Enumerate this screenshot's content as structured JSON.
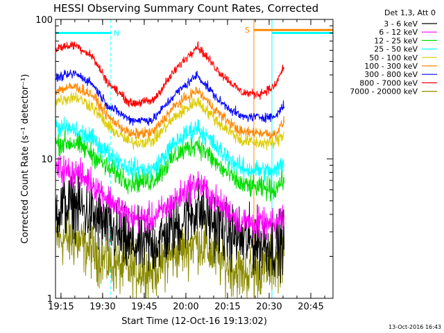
{
  "chart_data": {
    "type": "line",
    "title": "HESSI Observing Summary Count Rates, Corrected",
    "xlabel": "Start Time (12-Oct-16 19:13:02)",
    "ylabel": "Corrected Count Rate (s⁻¹ detector⁻¹)",
    "yscale": "log",
    "ylim": [
      1,
      100
    ],
    "xlim": [
      "19:13:02",
      "20:53:00"
    ],
    "x_ticks": [
      "19:15",
      "19:30",
      "19:45",
      "20:00",
      "20:15",
      "20:30",
      "20:45"
    ],
    "y_ticks": [
      "1",
      "10",
      "100"
    ],
    "legend_header": "Det 1,3, Att 0",
    "legend_position": "top-right outside",
    "grid": false,
    "data_start": "19:13:02",
    "data_end": "20:35:30",
    "series": [
      {
        "name": "3 - 6 keV",
        "color": "#000000",
        "x": [
          "19:13",
          "19:20",
          "19:26",
          "19:32",
          "19:40",
          "19:48",
          "19:56",
          "20:04",
          "20:12",
          "20:20",
          "20:26",
          "20:32",
          "20:35"
        ],
        "y": [
          4.4,
          4.7,
          3.9,
          3.2,
          2.4,
          2.4,
          3.2,
          4.4,
          3.2,
          2.6,
          2.5,
          2.3,
          2.6
        ]
      },
      {
        "name": "6 - 12 keV",
        "color": "#ff00ff",
        "x": [
          "19:13",
          "19:20",
          "19:26",
          "19:32",
          "19:40",
          "19:48",
          "19:56",
          "20:04",
          "20:12",
          "20:20",
          "20:26",
          "20:32",
          "20:35"
        ],
        "y": [
          8.5,
          8.0,
          6.8,
          5.2,
          3.8,
          3.7,
          5.0,
          6.8,
          4.7,
          3.6,
          3.4,
          3.3,
          3.9
        ]
      },
      {
        "name": "12 - 25 keV",
        "color": "#00dd00",
        "x": [
          "19:13",
          "19:20",
          "19:26",
          "19:32",
          "19:40",
          "19:48",
          "19:56",
          "20:04",
          "20:12",
          "20:20",
          "20:26",
          "20:32",
          "20:35"
        ],
        "y": [
          13,
          13,
          11,
          8.5,
          6.8,
          7.0,
          10.5,
          13,
          8.8,
          6.5,
          6.2,
          6.0,
          7.2
        ]
      },
      {
        "name": "25 - 50 keV",
        "color": "#00ffff",
        "x": [
          "19:13",
          "19:20",
          "19:26",
          "19:32",
          "19:40",
          "19:48",
          "19:56",
          "20:04",
          "20:12",
          "20:20",
          "20:26",
          "20:32",
          "20:35"
        ],
        "y": [
          17,
          16,
          14,
          11,
          8.5,
          8.3,
          13,
          17,
          11.5,
          8.5,
          8.3,
          8.0,
          9.5
        ]
      },
      {
        "name": "50 - 100 keV",
        "color": "#ddcc00",
        "x": [
          "19:13",
          "19:20",
          "19:26",
          "19:32",
          "19:40",
          "19:48",
          "19:56",
          "20:04",
          "20:12",
          "20:20",
          "20:26",
          "20:32",
          "20:35"
        ],
        "y": [
          26,
          28,
          24,
          17,
          13,
          13.5,
          20,
          26,
          18,
          13.5,
          13,
          13,
          15
        ]
      },
      {
        "name": "100 - 300 keV",
        "color": "#ff8800",
        "x": [
          "19:13",
          "19:20",
          "19:26",
          "19:32",
          "19:40",
          "19:48",
          "19:56",
          "20:04",
          "20:12",
          "20:20",
          "20:26",
          "20:32",
          "20:35"
        ],
        "y": [
          31,
          33,
          29,
          20,
          15,
          15.5,
          24,
          31,
          21,
          15.5,
          15.5,
          15,
          18
        ]
      },
      {
        "name": "300 - 800 keV",
        "color": "#0000ff",
        "x": [
          "19:13",
          "19:20",
          "19:26",
          "19:32",
          "19:40",
          "19:48",
          "19:56",
          "20:04",
          "20:12",
          "20:20",
          "20:26",
          "20:32",
          "20:35"
        ],
        "y": [
          38,
          41,
          35,
          24,
          19,
          19,
          29,
          40,
          26,
          20,
          20,
          20,
          24
        ]
      },
      {
        "name": "800 - 7000 keV",
        "color": "#ff0000",
        "x": [
          "19:13",
          "19:20",
          "19:26",
          "19:32",
          "19:40",
          "19:48",
          "19:56",
          "20:04",
          "20:12",
          "20:20",
          "20:26",
          "20:32",
          "20:35"
        ],
        "y": [
          62,
          66,
          55,
          35,
          25,
          26,
          43,
          65,
          42,
          30,
          29,
          33,
          45
        ]
      },
      {
        "name": "7000 - 20000 keV",
        "color": "#8b8b00",
        "x": [
          "19:13",
          "19:20",
          "19:26",
          "19:32",
          "19:40",
          "19:48",
          "19:56",
          "20:04",
          "20:12",
          "20:20",
          "20:26",
          "20:32",
          "20:35"
        ],
        "y": [
          2.7,
          2.6,
          2.2,
          1.8,
          1.6,
          1.6,
          2.1,
          2.6,
          1.9,
          1.5,
          1.6,
          1.8,
          2.0
        ]
      }
    ],
    "annotations": [
      {
        "label": "N",
        "color": "#00ffff",
        "bar_start": "19:13:02",
        "bar_end": "19:33:00",
        "y": 80
      },
      {
        "label": "",
        "color": "#00ffff",
        "bar_start": "20:31:00",
        "bar_end": "20:53:00",
        "y": 80
      },
      {
        "label": "S",
        "color": "#ff8800",
        "bar_start": "20:24:30",
        "bar_end": "20:53:00",
        "y": 84
      }
    ],
    "vertical_lines": [
      {
        "time": "19:13:02",
        "color": "#00ffff",
        "style": "solid"
      },
      {
        "time": "19:33:00",
        "color": "#00ffff",
        "style": "dashed"
      },
      {
        "time": "20:24:30",
        "color": "#ff8800",
        "style": "solid"
      },
      {
        "time": "20:31:00",
        "color": "#00ffff",
        "style": "solid"
      },
      {
        "time": "20:53:00",
        "color": "#00ffff",
        "style": "dashed"
      }
    ]
  },
  "footer": {
    "timestamp": "13-Oct-2016 16:43"
  }
}
